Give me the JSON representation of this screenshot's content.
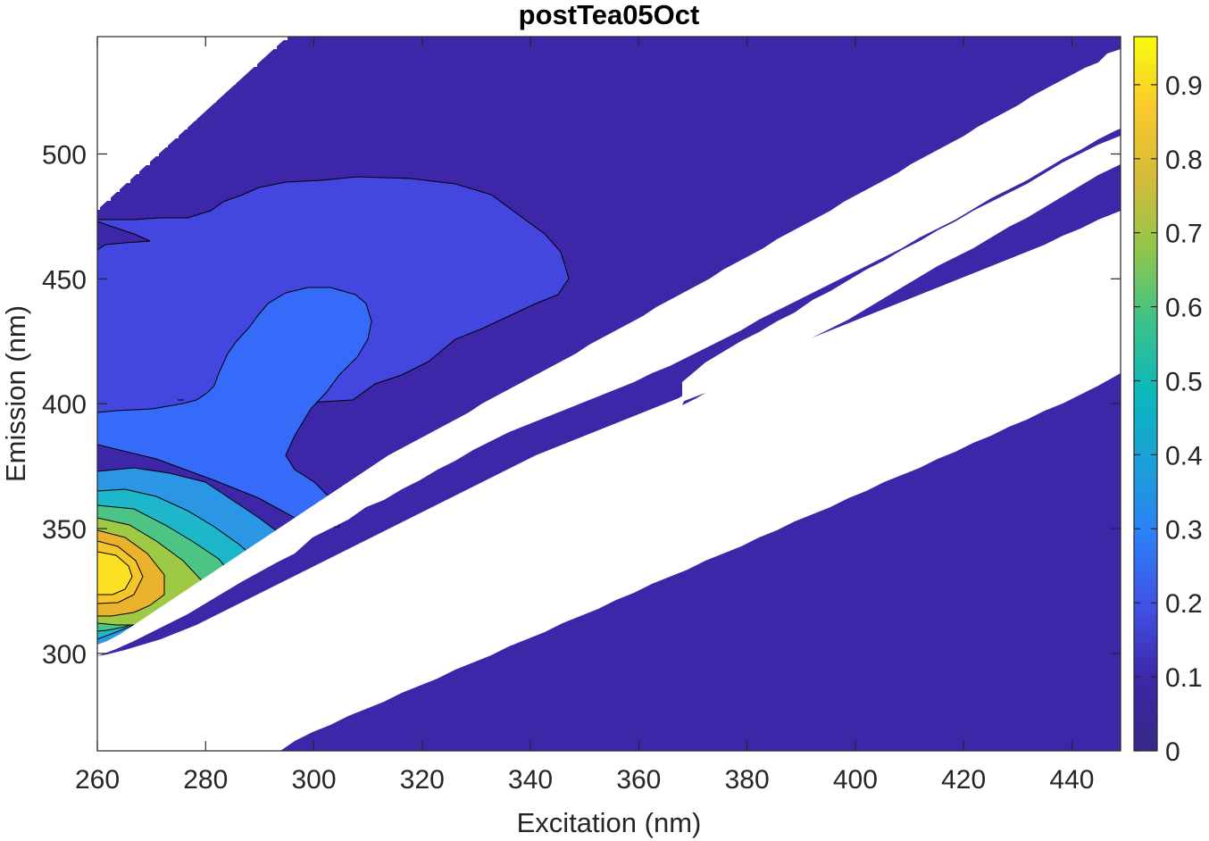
{
  "chart_data": {
    "type": "contourf",
    "title": "postTea05Oct",
    "xlabel": "Excitation (nm)",
    "ylabel": "Emission (nm)",
    "xlim": [
      260,
      449
    ],
    "ylim": [
      261,
      547
    ],
    "x_ticks": [
      260,
      280,
      300,
      320,
      340,
      360,
      380,
      400,
      420,
      440
    ],
    "y_ticks": [
      300,
      350,
      400,
      450,
      500
    ],
    "colorbar": {
      "ticks": [
        0,
        0.1,
        0.2,
        0.3,
        0.4,
        0.5,
        0.6,
        0.7,
        0.8,
        0.9
      ],
      "range": [
        0,
        0.965
      ],
      "colormap": "parula"
    },
    "colors": {
      "level_0": "#3e26a8",
      "level_1": "#4347e0",
      "level_2": "#366af8",
      "level_3": "#2a96e4",
      "level_4": "#1eb6c9",
      "level_5": "#4cc486",
      "level_6": "#9ec945",
      "level_7": "#ebb22e",
      "level_8": "#fbe024",
      "masked": "#ffffff"
    },
    "contour_levels": [
      0.1,
      0.2,
      0.3,
      0.4,
      0.5,
      0.6,
      0.7,
      0.8,
      0.9
    ],
    "peak": {
      "excitation": 262,
      "emission": 332,
      "intensity": 0.96
    },
    "masked_regions": [
      {
        "name": "upper-left blank",
        "boundary": [
          [
            260,
            478
          ],
          [
            294,
            547
          ]
        ]
      },
      {
        "name": "first-order Rayleigh scatter band",
        "lower_edge": [
          [
            260,
            297
          ],
          [
            449,
            418
          ]
        ],
        "upper_edge": [
          [
            260,
            300
          ],
          [
            449,
            547
          ]
        ]
      },
      {
        "name": "second-order scatter band",
        "lower_edge": [
          [
            368,
            400
          ],
          [
            449,
            480
          ]
        ],
        "upper_edge": [
          [
            368,
            402
          ],
          [
            449,
            508
          ]
        ]
      }
    ]
  }
}
